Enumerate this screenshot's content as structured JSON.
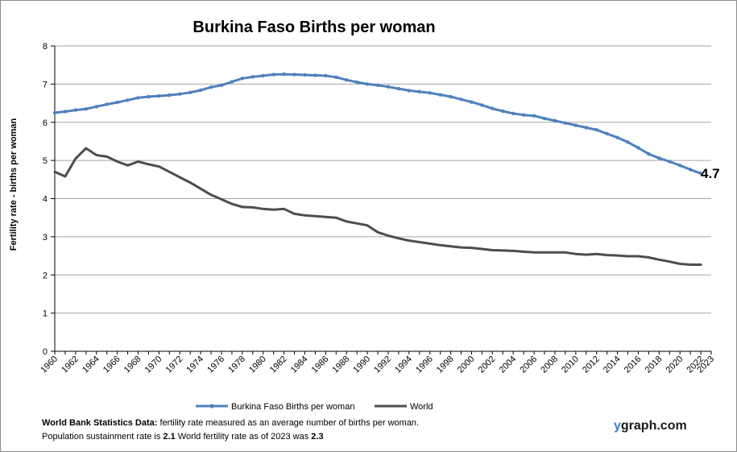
{
  "chart_data": {
    "type": "line",
    "title": "Burkina Faso Births per woman",
    "ylabel": "Fertility rate  - births per woman",
    "xlabel": "",
    "ylim": [
      0,
      8
    ],
    "yticks": [
      "0",
      "1",
      "2",
      "3",
      "4",
      "5",
      "6",
      "7",
      "8"
    ],
    "xticks": [
      "1960",
      "1962",
      "1964",
      "1966",
      "1968",
      "1970",
      "1972",
      "1974",
      "1976",
      "1978",
      "1980",
      "1982",
      "1984",
      "1986",
      "1988",
      "1990",
      "1992",
      "1994",
      "1996",
      "1998",
      "2000",
      "2002",
      "2004",
      "2006",
      "2008",
      "2010",
      "2012",
      "2014",
      "2016",
      "2018",
      "2020",
      "2022",
      "2023"
    ],
    "grid": true,
    "legend_position": "bottom",
    "end_label": "4.7",
    "x": [
      1960,
      1961,
      1962,
      1963,
      1964,
      1965,
      1966,
      1967,
      1968,
      1969,
      1970,
      1971,
      1972,
      1973,
      1974,
      1975,
      1976,
      1977,
      1978,
      1979,
      1980,
      1981,
      1982,
      1983,
      1984,
      1985,
      1986,
      1987,
      1988,
      1989,
      1990,
      1991,
      1992,
      1993,
      1994,
      1995,
      1996,
      1997,
      1998,
      1999,
      2000,
      2001,
      2002,
      2003,
      2004,
      2005,
      2006,
      2007,
      2008,
      2009,
      2010,
      2011,
      2012,
      2013,
      2014,
      2015,
      2016,
      2017,
      2018,
      2019,
      2020,
      2021,
      2022
    ],
    "series": [
      {
        "name": "Burkina Faso Births per woman",
        "color": "#4f81bd",
        "markers": true,
        "values": [
          6.25,
          6.28,
          6.32,
          6.35,
          6.41,
          6.47,
          6.52,
          6.58,
          6.64,
          6.67,
          6.69,
          6.71,
          6.74,
          6.78,
          6.84,
          6.92,
          6.97,
          7.06,
          7.15,
          7.19,
          7.22,
          7.25,
          7.26,
          7.25,
          7.24,
          7.23,
          7.22,
          7.18,
          7.11,
          7.05,
          7.0,
          6.97,
          6.93,
          6.88,
          6.83,
          6.8,
          6.77,
          6.72,
          6.67,
          6.6,
          6.53,
          6.45,
          6.36,
          6.29,
          6.23,
          6.19,
          6.17,
          6.1,
          6.04,
          5.98,
          5.92,
          5.86,
          5.8,
          5.7,
          5.6,
          5.48,
          5.33,
          5.17,
          5.06,
          4.97,
          4.87,
          4.76,
          4.66
        ]
      },
      {
        "name": "World",
        "color": "#4d4d4d",
        "markers": false,
        "values": [
          4.7,
          4.58,
          5.05,
          5.32,
          5.14,
          5.1,
          4.97,
          4.87,
          4.97,
          4.9,
          4.84,
          4.7,
          4.56,
          4.42,
          4.26,
          4.1,
          3.98,
          3.86,
          3.78,
          3.77,
          3.73,
          3.71,
          3.73,
          3.6,
          3.56,
          3.54,
          3.52,
          3.5,
          3.4,
          3.35,
          3.3,
          3.12,
          3.03,
          2.96,
          2.9,
          2.86,
          2.82,
          2.78,
          2.75,
          2.72,
          2.71,
          2.68,
          2.65,
          2.64,
          2.63,
          2.61,
          2.59,
          2.59,
          2.59,
          2.59,
          2.55,
          2.53,
          2.55,
          2.52,
          2.51,
          2.49,
          2.49,
          2.46,
          2.4,
          2.35,
          2.29,
          2.27,
          2.27
        ]
      }
    ]
  },
  "footer": {
    "line1_bold": "World Bank Statistics Data:",
    "line1_text": " fertility rate measured as an average number  of births per woman.",
    "line2_text_a": "Population sustainment rate is ",
    "line2_bold_a": "2.1",
    "line2_text_b": "    World fertility rate as of 2023 was ",
    "line2_bold_b": "2.3"
  },
  "brand": {
    "prefix": "y",
    "rest": "graph.com"
  }
}
